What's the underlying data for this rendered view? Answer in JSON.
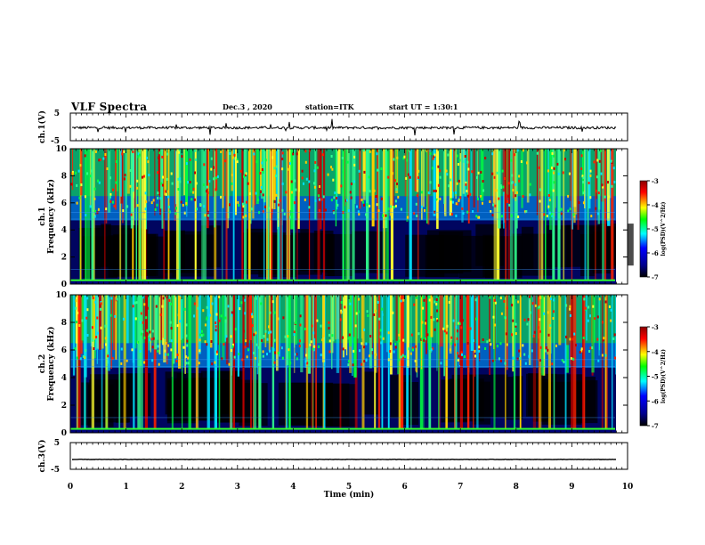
{
  "header": {
    "title": "VLF Spectra",
    "date": "Dec.3 , 2020",
    "station": "station=ITK",
    "start_ut": "start UT = 1:30:1"
  },
  "colorbar": {
    "label": "log(PSD)(V^2/Hz)",
    "ticks": [
      "-3",
      "-4",
      "-5",
      "-6",
      "-7"
    ],
    "colors": [
      "#8b0000",
      "#ff0000",
      "#ffff00",
      "#00ff00",
      "#00ffff",
      "#0000ff",
      "#00008b",
      "#000000"
    ]
  },
  "chart_data": [
    {
      "type": "line",
      "title": "",
      "ylabel": "ch.1(V)",
      "ylim": [
        -5,
        5
      ],
      "y_ticks": [
        "5",
        "-5"
      ],
      "xlim": [
        0,
        10
      ],
      "baseline": -0.3
    },
    {
      "type": "heatmap",
      "ylabel": "ch.1 Frequency (kHz)",
      "ylim": [
        0,
        10
      ],
      "y_ticks": [
        "0",
        "2",
        "4",
        "6",
        "8",
        "10"
      ],
      "xlim": [
        0,
        10
      ],
      "colorbar_range": [
        -7,
        -3
      ]
    },
    {
      "type": "heatmap",
      "ylabel": "ch.2 Frequency (kHz)",
      "ylim": [
        0,
        10
      ],
      "y_ticks": [
        "0",
        "2",
        "4",
        "6",
        "8",
        "10"
      ],
      "xlim": [
        0,
        10
      ],
      "colorbar_range": [
        -7,
        -3
      ]
    },
    {
      "type": "line",
      "ylabel": "ch.3(V)",
      "ylim": [
        -5,
        5
      ],
      "y_ticks": [
        "5",
        "-5"
      ],
      "xlim": [
        0,
        10
      ],
      "baseline": -1.3,
      "xlabel": "Time (min)",
      "x_ticks": [
        "0",
        "1",
        "2",
        "3",
        "4",
        "5",
        "6",
        "7",
        "8",
        "9",
        "10"
      ]
    }
  ]
}
